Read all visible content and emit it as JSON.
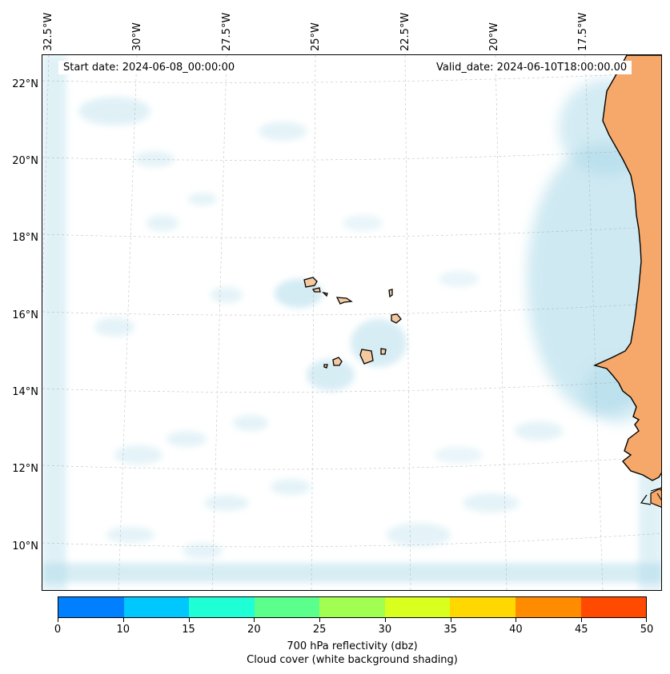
{
  "start_date": "Start date: 2024-06-08_00:00:00",
  "valid_date": "Valid_date: 2024-06-10T18:00:00.00",
  "lon_labels": [
    "32.5°W",
    "30°W",
    "27.5°W",
    "25°W",
    "22.5°W",
    "20°W",
    "17.5°W"
  ],
  "lat_labels": [
    "22°N",
    "20°N",
    "18°N",
    "16°N",
    "14°N",
    "12°N",
    "10°N"
  ],
  "colorbar": {
    "ticks": [
      "0",
      "10",
      "15",
      "20",
      "25",
      "30",
      "35",
      "40",
      "45",
      "50"
    ],
    "colors": [
      "#0080ff",
      "#00c8ff",
      "#1effd6",
      "#5aff8c",
      "#a0ff50",
      "#d8ff1e",
      "#ffd800",
      "#ff8c00",
      "#ff4a00"
    ],
    "label_line1": "700 hPa reflectivity (dbz)",
    "label_line2": "Cloud cover (white background shading)"
  },
  "colors": {
    "land": "#f5a86a",
    "cloud": "#a8d8e8",
    "coast": "#000000"
  }
}
